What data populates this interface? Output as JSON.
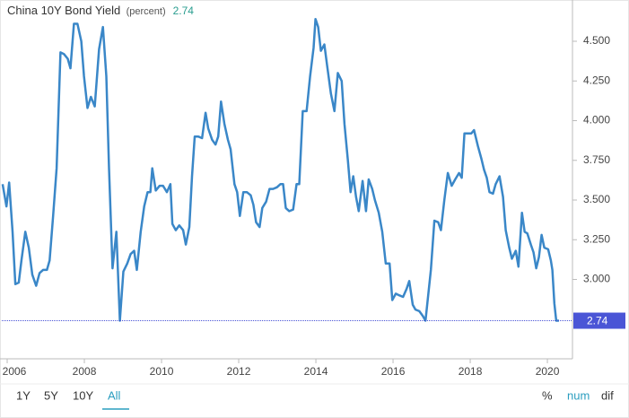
{
  "chart_data": {
    "type": "line",
    "title": "China 10Y Bond Yield",
    "unit_label": "(percent)",
    "last_value": 2.74,
    "color": "#3a87c8",
    "reference_color": "#4a55d6",
    "xlim": [
      2005.86,
      2020.65
    ],
    "ylim": [
      2.5,
      4.76
    ],
    "xticks": [
      2006,
      2008,
      2010,
      2012,
      2014,
      2016,
      2018,
      2020
    ],
    "yticks": [
      {
        "value": 3.0,
        "label": "3.000"
      },
      {
        "value": 3.25,
        "label": "3.250"
      },
      {
        "value": 3.5,
        "label": "3.500"
      },
      {
        "value": 3.75,
        "label": "3.750"
      },
      {
        "value": 4.0,
        "label": "4.000"
      },
      {
        "value": 4.25,
        "label": "4.250"
      },
      {
        "value": 4.5,
        "label": "4.500"
      }
    ],
    "x": [
      2005.88,
      2005.98,
      2006.05,
      2006.14,
      2006.21,
      2006.3,
      2006.37,
      2006.47,
      2006.56,
      2006.65,
      2006.75,
      2006.84,
      2006.93,
      2007.03,
      2007.1,
      2007.19,
      2007.28,
      2007.38,
      2007.47,
      2007.57,
      2007.64,
      2007.73,
      2007.82,
      2007.92,
      2007.99,
      2008.08,
      2008.17,
      2008.27,
      2008.38,
      2008.48,
      2008.57,
      2008.64,
      2008.73,
      2008.83,
      2008.92,
      2009.01,
      2009.11,
      2009.2,
      2009.29,
      2009.36,
      2009.46,
      2009.55,
      2009.64,
      2009.71,
      2009.76,
      2009.85,
      2009.95,
      2010.04,
      2010.14,
      2010.23,
      2010.28,
      2010.37,
      2010.46,
      2010.56,
      2010.63,
      2010.72,
      2010.79,
      2010.86,
      2010.95,
      2011.05,
      2011.14,
      2011.21,
      2011.31,
      2011.4,
      2011.47,
      2011.54,
      2011.63,
      2011.72,
      2011.79,
      2011.89,
      2011.96,
      2012.03,
      2012.12,
      2012.21,
      2012.31,
      2012.38,
      2012.45,
      2012.54,
      2012.61,
      2012.71,
      2012.8,
      2012.89,
      2012.99,
      2013.08,
      2013.15,
      2013.22,
      2013.31,
      2013.41,
      2013.5,
      2013.57,
      2013.66,
      2013.76,
      2013.85,
      2013.94,
      2013.99,
      2014.06,
      2014.13,
      2014.22,
      2014.29,
      2014.39,
      2014.48,
      2014.57,
      2014.67,
      2014.74,
      2014.83,
      2014.9,
      2014.97,
      2015.04,
      2015.11,
      2015.21,
      2015.3,
      2015.37,
      2015.46,
      2015.53,
      2015.63,
      2015.72,
      2015.81,
      2015.91,
      2015.98,
      2016.07,
      2016.16,
      2016.26,
      2016.35,
      2016.42,
      2016.51,
      2016.58,
      2016.68,
      2016.77,
      2016.84,
      2016.91,
      2016.98,
      2017.07,
      2017.17,
      2017.24,
      2017.33,
      2017.42,
      2017.52,
      2017.61,
      2017.71,
      2017.78,
      2017.85,
      2017.94,
      2018.03,
      2018.1,
      2018.2,
      2018.29,
      2018.36,
      2018.43,
      2018.5,
      2018.59,
      2018.66,
      2018.76,
      2018.85,
      2018.92,
      2019.01,
      2019.08,
      2019.18,
      2019.25,
      2019.34,
      2019.41,
      2019.48,
      2019.57,
      2019.64,
      2019.71,
      2019.78,
      2019.85,
      2019.92,
      2020.02,
      2020.09,
      2020.13,
      2020.18,
      2020.23,
      2020.3
    ],
    "values": [
      3.6,
      3.46,
      3.61,
      3.3,
      2.97,
      2.98,
      3.12,
      3.3,
      3.2,
      3.03,
      2.96,
      3.04,
      3.06,
      3.06,
      3.12,
      3.4,
      3.7,
      4.43,
      4.42,
      4.39,
      4.33,
      4.61,
      4.61,
      4.5,
      4.28,
      4.08,
      4.15,
      4.09,
      4.45,
      4.59,
      4.28,
      3.7,
      3.07,
      3.3,
      2.74,
      3.05,
      3.1,
      3.16,
      3.18,
      3.06,
      3.3,
      3.46,
      3.55,
      3.55,
      3.7,
      3.56,
      3.59,
      3.59,
      3.55,
      3.6,
      3.35,
      3.31,
      3.34,
      3.31,
      3.22,
      3.33,
      3.65,
      3.9,
      3.9,
      3.89,
      4.05,
      3.95,
      3.88,
      3.85,
      3.9,
      4.12,
      3.98,
      3.88,
      3.82,
      3.6,
      3.55,
      3.4,
      3.55,
      3.55,
      3.53,
      3.47,
      3.36,
      3.33,
      3.45,
      3.49,
      3.57,
      3.57,
      3.58,
      3.6,
      3.6,
      3.45,
      3.43,
      3.44,
      3.6,
      3.6,
      4.06,
      4.06,
      4.28,
      4.46,
      4.64,
      4.59,
      4.44,
      4.48,
      4.35,
      4.17,
      4.06,
      4.3,
      4.25,
      3.98,
      3.75,
      3.55,
      3.65,
      3.52,
      3.43,
      3.62,
      3.43,
      3.63,
      3.57,
      3.5,
      3.42,
      3.3,
      3.1,
      3.1,
      2.87,
      2.91,
      2.9,
      2.89,
      2.94,
      2.99,
      2.84,
      2.81,
      2.8,
      2.77,
      2.74,
      2.9,
      3.06,
      3.37,
      3.36,
      3.31,
      3.5,
      3.67,
      3.59,
      3.63,
      3.67,
      3.64,
      3.92,
      3.92,
      3.92,
      3.94,
      3.84,
      3.76,
      3.69,
      3.64,
      3.55,
      3.54,
      3.6,
      3.65,
      3.52,
      3.31,
      3.2,
      3.13,
      3.18,
      3.08,
      3.42,
      3.3,
      3.29,
      3.22,
      3.17,
      3.07,
      3.14,
      3.28,
      3.2,
      3.19,
      3.12,
      3.06,
      2.85,
      2.74,
      2.74
    ]
  },
  "controls": {
    "ranges": [
      {
        "label": "1Y"
      },
      {
        "label": "5Y"
      },
      {
        "label": "10Y"
      },
      {
        "label": "All",
        "active": true
      }
    ],
    "modes": [
      {
        "label": "%"
      },
      {
        "label": "num",
        "active": true
      },
      {
        "label": "dif"
      }
    ]
  }
}
